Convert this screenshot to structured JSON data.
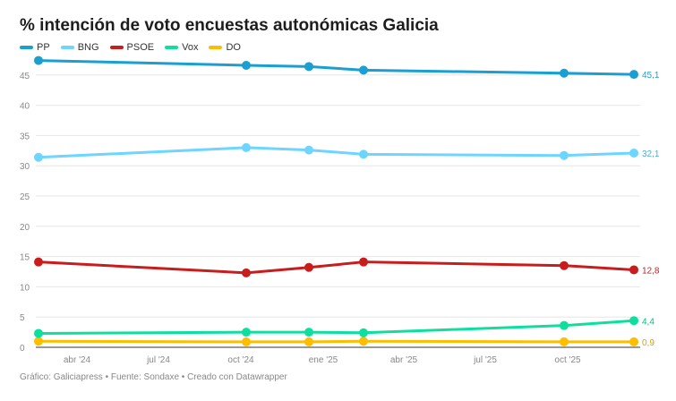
{
  "chart_data": {
    "type": "line",
    "title": "% intención de voto encuestas autonómicas Galicia",
    "x": [
      "2024-02-18",
      "2024-10-07",
      "2024-12-16",
      "2025-02-15",
      "2025-09-27",
      "2025-12-14"
    ],
    "series": [
      {
        "name": "PP",
        "color": "#1a9fd0",
        "values": [
          47.4,
          46.6,
          46.4,
          45.8,
          45.3,
          45.1
        ],
        "end_label": "45,1"
      },
      {
        "name": "BNG",
        "color": "#6dd5ff",
        "values": [
          31.4,
          33.0,
          32.6,
          31.9,
          31.7,
          32.1
        ],
        "end_label": "32,1"
      },
      {
        "name": "PSOE",
        "color": "#c71e1d",
        "values": [
          14.1,
          12.3,
          13.2,
          14.1,
          13.5,
          12.8
        ],
        "end_label": "12,8"
      },
      {
        "name": "Vox",
        "color": "#0edf9e",
        "values": [
          2.3,
          2.5,
          2.5,
          2.4,
          3.6,
          4.4
        ],
        "end_label": "4,4"
      },
      {
        "name": "DO",
        "color": "#fdbe00",
        "values": [
          1.0,
          0.9,
          0.9,
          1.0,
          0.9,
          0.9
        ],
        "end_label": "0,9"
      }
    ],
    "yticks": [
      0,
      5,
      10,
      15,
      20,
      25,
      30,
      35,
      40,
      45
    ],
    "ylim": [
      0,
      47.5
    ],
    "xticks": [
      {
        "date": "2024-04-01",
        "label": "abr '24"
      },
      {
        "date": "2024-07-01",
        "label": "jul '24"
      },
      {
        "date": "2024-10-01",
        "label": "oct '24"
      },
      {
        "date": "2025-01-01",
        "label": "ene '25"
      },
      {
        "date": "2025-04-01",
        "label": "abr '25"
      },
      {
        "date": "2025-07-01",
        "label": "jul '25"
      },
      {
        "date": "2025-10-01",
        "label": "oct '25"
      }
    ],
    "grid": true,
    "legend": "top-left"
  },
  "footer": "Gráfico: Galiciapress • Fuente: Sondaxe • Creado con Datawrapper"
}
